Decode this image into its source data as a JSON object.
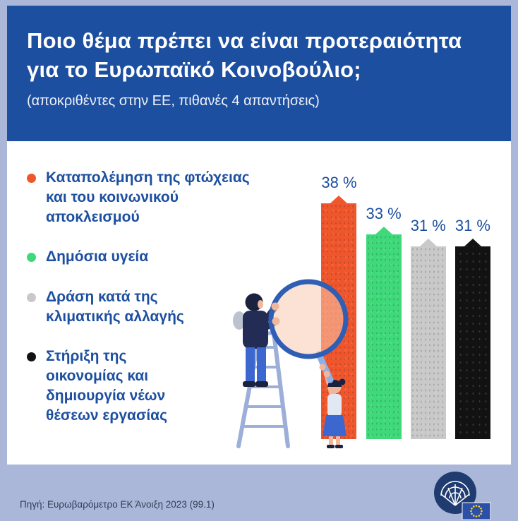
{
  "page": {
    "bg_color": "#aab7d9",
    "panel_color": "#ffffff"
  },
  "header": {
    "bg_color": "#1d4fa0",
    "title_line1": "Ποιο θέμα πρέπει να είναι προτεραιότητα",
    "title_line2": "για το Ευρωπαϊκό Κοινοβούλιο;",
    "subtitle": "(αποκριθέντες στην ΕΕ, πιθανές 4 απαντήσεις)"
  },
  "legend": {
    "items": [
      {
        "label": "Καταπολέμηση της φτώχειας\nκαι του κοινωνικού\nαποκλεισμού",
        "color": "#f0562c"
      },
      {
        "label": "Δημόσια υγεία",
        "color": "#3fd97a"
      },
      {
        "label": "Δράση κατά της\nκλιματικής αλλαγής",
        "color": "#c9c9c9"
      },
      {
        "label": "Στήριξη της\nοικονομίας και\nδημιουργία νέων\nθέσεων εργασίας",
        "color": "#121212"
      }
    ]
  },
  "chart_data": {
    "type": "bar",
    "title": "Ποιο θέμα πρέπει να είναι προτεραιότητα για το Ευρωπαϊκό Κοινοβούλιο;",
    "subtitle": "(αποκριθέντες στην ΕΕ, πιθανές 4 απαντήσεις)",
    "unit": "%",
    "categories": [
      "Καταπολέμηση της φτώχειας και του κοινωνικού αποκλεισμού",
      "Δημόσια υγεία",
      "Δράση κατά της κλιματικής αλλαγής",
      "Στήριξη της οικονομίας και δημιουργία νέων θέσεων εργασίας"
    ],
    "values": [
      38,
      33,
      31,
      31
    ],
    "value_labels": [
      "38 %",
      "33 %",
      "31 %",
      "31 %"
    ],
    "colors": [
      "#f0562c",
      "#3fd97a",
      "#c9c9c9",
      "#121212"
    ],
    "ylim": [
      0,
      40
    ],
    "grid": false,
    "legend_position": "left"
  },
  "footer": {
    "source": "Πηγή: Ευρωβαρόμετρο ΕΚ Άνοιξη 2023 (99.1)",
    "logo": "european-parliament-logo"
  }
}
